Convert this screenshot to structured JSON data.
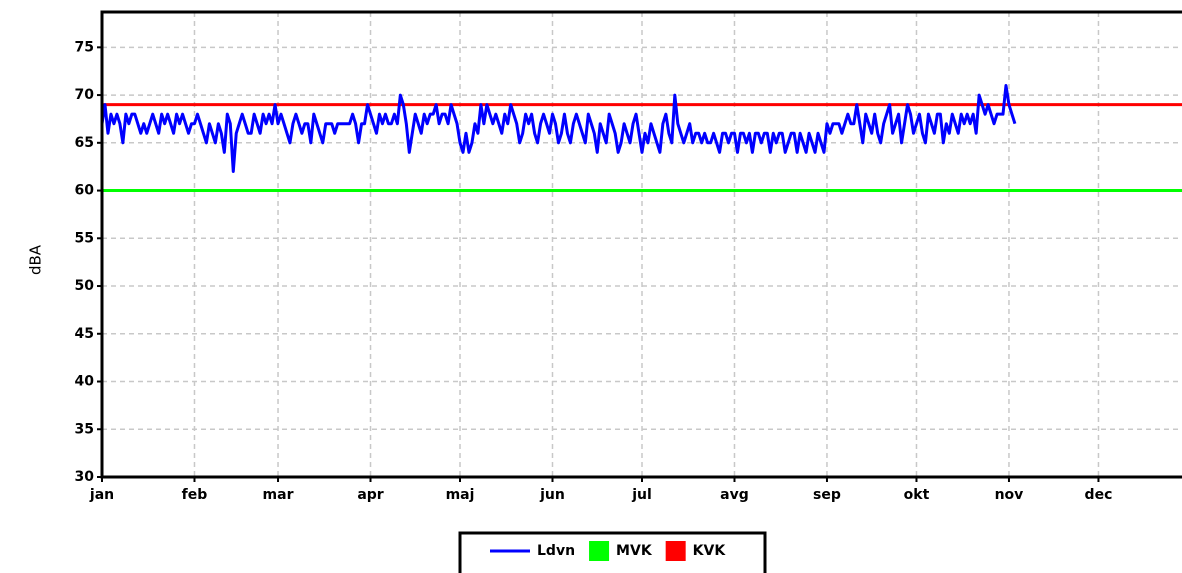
{
  "chart_data": {
    "type": "line",
    "y_label": "dBA",
    "xlim": [
      0,
      362
    ],
    "ylim": [
      30,
      78.7
    ],
    "xticks": [
      {
        "value": 0,
        "label": "jan"
      },
      {
        "value": 31,
        "label": "feb"
      },
      {
        "value": 59,
        "label": "mar"
      },
      {
        "value": 90,
        "label": "apr"
      },
      {
        "value": 120,
        "label": "maj"
      },
      {
        "value": 151,
        "label": "jun"
      },
      {
        "value": 181,
        "label": "jul"
      },
      {
        "value": 212,
        "label": "avg"
      },
      {
        "value": 243,
        "label": "sep"
      },
      {
        "value": 273,
        "label": "okt"
      },
      {
        "value": 304,
        "label": "nov"
      },
      {
        "value": 334,
        "label": "dec"
      }
    ],
    "yticks": [
      30,
      35,
      40,
      45,
      50,
      55,
      60,
      65,
      70,
      75
    ],
    "grid": true,
    "x": [
      0,
      1,
      2,
      3,
      4,
      5,
      6,
      7,
      8,
      9,
      10,
      11,
      12,
      13,
      14,
      15,
      16,
      17,
      18,
      19,
      20,
      21,
      22,
      23,
      24,
      25,
      26,
      27,
      28,
      29,
      30,
      31,
      32,
      33,
      34,
      35,
      36,
      37,
      38,
      39,
      40,
      41,
      42,
      43,
      44,
      45,
      46,
      47,
      48,
      49,
      50,
      51,
      52,
      53,
      54,
      55,
      56,
      57,
      58,
      59,
      60,
      61,
      62,
      63,
      64,
      65,
      66,
      67,
      68,
      69,
      70,
      71,
      72,
      73,
      74,
      75,
      76,
      77,
      78,
      79,
      80,
      81,
      82,
      83,
      84,
      85,
      86,
      87,
      88,
      89,
      90,
      91,
      92,
      93,
      94,
      95,
      96,
      97,
      98,
      99,
      100,
      101,
      102,
      103,
      104,
      105,
      106,
      107,
      108,
      109,
      110,
      111,
      112,
      113,
      114,
      115,
      116,
      117,
      118,
      119,
      120,
      121,
      122,
      123,
      124,
      125,
      126,
      127,
      128,
      129,
      130,
      131,
      132,
      133,
      134,
      135,
      136,
      137,
      138,
      139,
      140,
      141,
      142,
      143,
      144,
      145,
      146,
      147,
      148,
      149,
      150,
      151,
      152,
      153,
      154,
      155,
      156,
      157,
      158,
      159,
      160,
      161,
      162,
      163,
      164,
      165,
      166,
      167,
      168,
      169,
      170,
      171,
      172,
      173,
      174,
      175,
      176,
      177,
      178,
      179,
      180,
      181,
      182,
      183,
      184,
      185,
      186,
      187,
      188,
      189,
      190,
      191,
      192,
      193,
      194,
      195,
      196,
      197,
      198,
      199,
      200,
      201,
      202,
      203,
      204,
      205,
      206,
      207,
      208,
      209,
      210,
      211,
      212,
      213,
      214,
      215,
      216,
      217,
      218,
      219,
      220,
      221,
      222,
      223,
      224,
      225,
      226,
      227,
      228,
      229,
      230,
      231,
      232,
      233,
      234,
      235,
      236,
      237,
      238,
      239,
      240,
      241,
      242,
      243,
      244,
      245,
      246,
      247,
      248,
      249,
      250,
      251,
      252,
      253,
      254,
      255,
      256,
      257,
      258,
      259,
      260,
      261,
      262,
      263,
      264,
      265,
      266,
      267,
      268,
      269,
      270,
      271,
      272,
      273,
      274,
      275,
      276,
      277,
      278,
      279,
      280,
      281,
      282,
      283,
      284,
      285,
      286,
      287,
      288,
      289,
      290,
      291,
      292,
      293,
      294,
      295,
      296,
      297,
      298,
      299,
      300,
      301,
      302,
      303,
      304,
      305,
      306
    ],
    "series": [
      {
        "name": "Ldvn",
        "color": "#0000ff",
        "values": [
          67,
          69,
          66,
          68,
          67,
          68,
          67,
          65,
          68,
          67,
          68,
          68,
          67,
          66,
          67,
          66,
          67,
          68,
          67,
          66,
          68,
          67,
          68,
          67,
          66,
          68,
          67,
          68,
          67,
          66,
          67,
          67,
          68,
          67,
          66,
          65,
          67,
          66,
          65,
          67,
          66,
          64,
          68,
          67,
          62,
          66,
          67,
          68,
          67,
          66,
          66,
          68,
          67,
          66,
          68,
          67,
          68,
          67,
          69,
          67,
          68,
          67,
          66,
          65,
          67,
          68,
          67,
          66,
          67,
          67,
          65,
          68,
          67,
          66,
          65,
          67,
          67,
          67,
          66,
          67,
          67,
          67,
          67,
          67,
          68,
          67,
          65,
          67,
          67,
          69,
          68,
          67,
          66,
          68,
          67,
          68,
          67,
          67,
          68,
          67,
          70,
          69,
          67,
          64,
          66,
          68,
          67,
          66,
          68,
          67,
          68,
          68,
          69,
          67,
          68,
          68,
          67,
          69,
          68,
          67,
          65,
          64,
          66,
          64,
          65,
          67,
          66,
          69,
          67,
          69,
          68,
          67,
          68,
          67,
          66,
          68,
          67,
          69,
          68,
          67,
          65,
          66,
          68,
          67,
          68,
          66,
          65,
          67,
          68,
          67,
          66,
          68,
          67,
          65,
          66,
          68,
          66,
          65,
          67,
          68,
          67,
          66,
          65,
          68,
          67,
          66,
          64,
          67,
          66,
          65,
          68,
          67,
          66,
          64,
          65,
          67,
          66,
          65,
          67,
          68,
          66,
          64,
          66,
          65,
          67,
          66,
          65,
          64,
          67,
          68,
          66,
          65,
          70,
          67,
          66,
          65,
          66,
          67,
          65,
          66,
          66,
          65,
          66,
          65,
          65,
          66,
          65,
          64,
          66,
          66,
          65,
          66,
          66,
          64,
          66,
          66,
          65,
          66,
          64,
          66,
          66,
          65,
          66,
          66,
          64,
          66,
          65,
          66,
          66,
          64,
          65,
          66,
          66,
          64,
          66,
          65,
          64,
          66,
          65,
          64,
          66,
          65,
          64,
          67,
          66,
          67,
          67,
          67,
          66,
          67,
          68,
          67,
          67,
          69,
          67,
          65,
          68,
          67,
          66,
          68,
          66,
          65,
          67,
          68,
          69,
          66,
          67,
          68,
          65,
          67,
          69,
          68,
          66,
          67,
          68,
          66,
          65,
          68,
          67,
          66,
          68,
          68,
          65,
          67,
          66,
          68,
          67,
          66,
          68,
          67,
          68,
          67,
          68,
          66,
          70,
          69,
          68,
          69,
          68,
          67,
          68,
          68,
          68,
          71,
          69,
          68,
          67
        ]
      }
    ],
    "reference_lines": [
      {
        "name": "MVK",
        "color": "#00ff00",
        "value": 60
      },
      {
        "name": "KVK",
        "color": "#ff0000",
        "value": 69
      }
    ]
  }
}
